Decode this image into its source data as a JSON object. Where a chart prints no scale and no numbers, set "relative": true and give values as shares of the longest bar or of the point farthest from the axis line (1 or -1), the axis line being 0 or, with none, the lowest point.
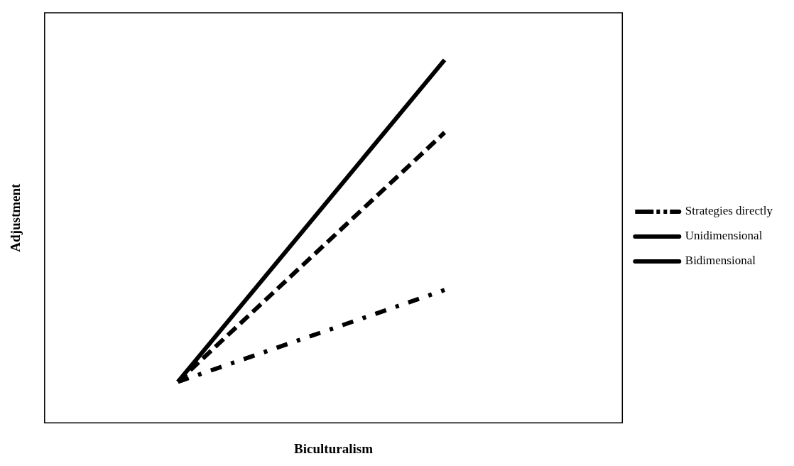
{
  "chart_data": {
    "type": "line",
    "xlabel": "Biculturalism",
    "ylabel": "Adjustment",
    "relative": true,
    "legend": "right",
    "marker": "none",
    "categories": [
      null,
      null,
      null,
      null,
      null,
      null,
      null,
      null,
      null,
      null,
      null,
      null,
      null,
      null
    ],
    "series": [
      {
        "name": "Strategies directly",
        "color": "#000000",
        "line_style": "dashdot",
        "values": [
          null,
          null,
          null,
          0.113,
          null,
          null,
          null,
          null,
          null,
          0.366,
          null,
          null,
          null,
          null
        ]
      },
      {
        "name": "Unidimensional",
        "color": "#000000",
        "line_style": "dashed",
        "values": [
          null,
          null,
          null,
          0.113,
          null,
          null,
          null,
          null,
          null,
          0.8,
          null,
          null,
          null,
          null
        ]
      },
      {
        "name": "Bidimensional",
        "color": "#000000",
        "line_style": "solid",
        "values": [
          null,
          null,
          null,
          0.113,
          null,
          null,
          null,
          null,
          null,
          1,
          null,
          null,
          null,
          null
        ]
      }
    ]
  }
}
